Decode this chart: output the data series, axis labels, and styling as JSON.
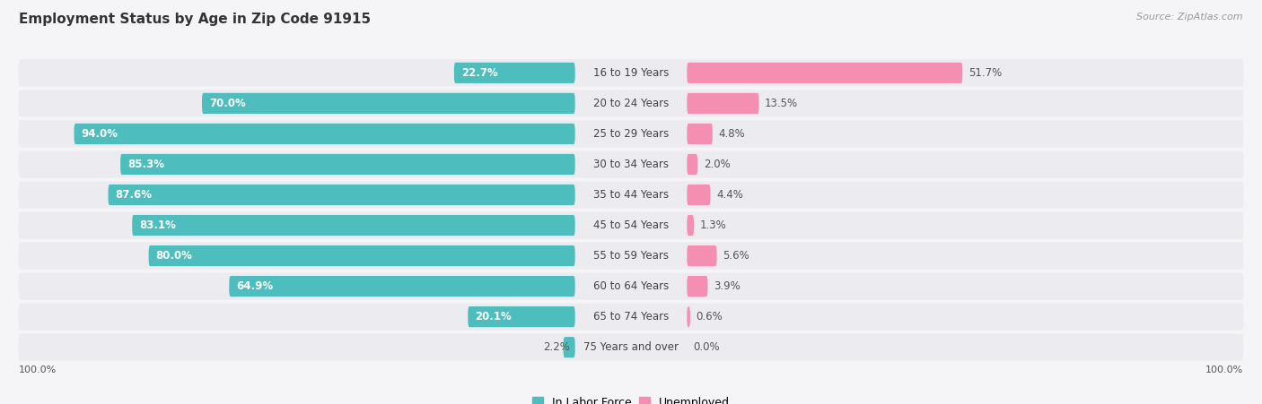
{
  "title": "Employment Status by Age in Zip Code 91915",
  "source": "Source: ZipAtlas.com",
  "categories": [
    "16 to 19 Years",
    "20 to 24 Years",
    "25 to 29 Years",
    "30 to 34 Years",
    "35 to 44 Years",
    "45 to 54 Years",
    "55 to 59 Years",
    "60 to 64 Years",
    "65 to 74 Years",
    "75 Years and over"
  ],
  "labor_force": [
    22.7,
    70.0,
    94.0,
    85.3,
    87.6,
    83.1,
    80.0,
    64.9,
    20.1,
    2.2
  ],
  "unemployed": [
    51.7,
    13.5,
    4.8,
    2.0,
    4.4,
    1.3,
    5.6,
    3.9,
    0.6,
    0.0
  ],
  "labor_force_color": "#4dbdbd",
  "unemployed_color": "#f48fb1",
  "row_bg_color": "#ebebf0",
  "fig_bg_color": "#f5f5f8",
  "title_fontsize": 11,
  "source_fontsize": 8,
  "value_fontsize": 8.5,
  "category_fontsize": 8.5,
  "legend_fontsize": 9,
  "axis_label_fontsize": 8,
  "lf_label_white_threshold": 15
}
